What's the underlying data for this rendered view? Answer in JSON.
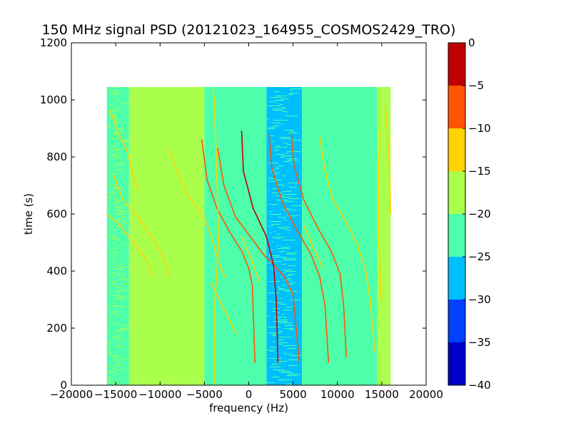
{
  "chart_data": {
    "type": "heatmap",
    "title": "150 MHz signal PSD (20121023_164955_COSMOS2429_TRO)",
    "xlabel": "frequency (Hz)",
    "ylabel": "time (s)",
    "xlim": [
      -20000,
      20000
    ],
    "ylim": [
      0,
      1200
    ],
    "xticks": [
      -20000,
      -15000,
      -10000,
      -5000,
      0,
      5000,
      10000,
      15000,
      20000
    ],
    "xtick_labels": [
      "−20000",
      "−15000",
      "−10000",
      "−5000",
      "0",
      "5000",
      "10000",
      "15000",
      "20000"
    ],
    "yticks": [
      0,
      200,
      400,
      600,
      800,
      1000,
      1200
    ],
    "ytick_labels": [
      "0",
      "200",
      "400",
      "600",
      "800",
      "1000",
      "1200"
    ],
    "data_extent": {
      "x": [
        -16000,
        16000
      ],
      "y": [
        0,
        1045
      ]
    },
    "colorbar": {
      "min": -40,
      "max": 0,
      "ticks": [
        0,
        -5,
        -10,
        -15,
        -20,
        -25,
        -30,
        -35,
        -40
      ],
      "tick_labels": [
        "0",
        "−5",
        "−10",
        "−15",
        "−20",
        "−25",
        "−30",
        "−35",
        "−40"
      ],
      "levels": [
        {
          "range": [
            -5,
            0
          ],
          "color": "#c00000"
        },
        {
          "range": [
            -10,
            -5
          ],
          "color": "#ff5500"
        },
        {
          "range": [
            -15,
            -10
          ],
          "color": "#ffd200"
        },
        {
          "range": [
            -20,
            -15
          ],
          "color": "#aaff4d"
        },
        {
          "range": [
            -25,
            -20
          ],
          "color": "#4dffaa"
        },
        {
          "range": [
            -30,
            -25
          ],
          "color": "#00bfff"
        },
        {
          "range": [
            -35,
            -30
          ],
          "color": "#0040ff"
        },
        {
          "range": [
            -40,
            -35
          ],
          "color": "#0000c8"
        }
      ]
    },
    "bands": [
      {
        "x": [
          -16000,
          -13500
        ],
        "level": -20,
        "color": "#4dffaa",
        "note": "mixed"
      },
      {
        "x": [
          -13500,
          -5000
        ],
        "level": -17,
        "color": "#aaff4d"
      },
      {
        "x": [
          -5000,
          2000
        ],
        "level": -22,
        "color": "#4dffaa"
      },
      {
        "x": [
          2000,
          6000
        ],
        "level": -26,
        "color": "#00bfff",
        "note": "mixed"
      },
      {
        "x": [
          6000,
          14500
        ],
        "level": -22,
        "color": "#4dffaa"
      },
      {
        "x": [
          14500,
          16000
        ],
        "level": -19,
        "color": "#aaff4d"
      }
    ],
    "traces": [
      {
        "color": "#ff5500",
        "points": [
          [
            -5300,
            860
          ],
          [
            -4700,
            720
          ],
          [
            -3600,
            620
          ],
          [
            -2200,
            540
          ],
          [
            -800,
            470
          ],
          [
            0,
            410
          ],
          [
            400,
            350
          ],
          [
            700,
            80
          ]
        ]
      },
      {
        "color": "#ff5500",
        "points": [
          [
            -3500,
            830
          ],
          [
            -2800,
            700
          ],
          [
            -1500,
            590
          ],
          [
            200,
            520
          ],
          [
            1600,
            460
          ],
          [
            2900,
            420
          ],
          [
            4000,
            380
          ],
          [
            5000,
            320
          ],
          [
            5700,
            80
          ]
        ]
      },
      {
        "color": "#c00000",
        "points": [
          [
            -800,
            890
          ],
          [
            -600,
            750
          ],
          [
            500,
            620
          ],
          [
            2000,
            520
          ],
          [
            2800,
            420
          ],
          [
            3100,
            300
          ],
          [
            3300,
            80
          ]
        ]
      },
      {
        "color": "#ff5500",
        "points": [
          [
            2300,
            880
          ],
          [
            2600,
            760
          ],
          [
            3800,
            640
          ],
          [
            5500,
            540
          ],
          [
            7000,
            460
          ],
          [
            8000,
            380
          ],
          [
            8600,
            280
          ],
          [
            9000,
            80
          ]
        ]
      },
      {
        "color": "#ff5500",
        "points": [
          [
            4800,
            880
          ],
          [
            5100,
            770
          ],
          [
            6200,
            650
          ],
          [
            7800,
            550
          ],
          [
            9300,
            470
          ],
          [
            10300,
            390
          ],
          [
            10700,
            280
          ],
          [
            11000,
            100
          ]
        ]
      },
      {
        "color": "#ffd200",
        "points": [
          [
            -15600,
            960
          ],
          [
            -14800,
            890
          ],
          [
            -13800,
            830
          ],
          [
            -12900,
            720
          ],
          [
            -12400,
            690
          ]
        ]
      },
      {
        "color": "#ffd200",
        "points": [
          [
            -16000,
            600
          ],
          [
            -14500,
            560
          ],
          [
            -13000,
            500
          ],
          [
            -11500,
            440
          ],
          [
            -10800,
            380
          ]
        ]
      },
      {
        "color": "#ffd200",
        "points": [
          [
            -15300,
            740
          ],
          [
            -14200,
            650
          ],
          [
            -12500,
            590
          ],
          [
            -11000,
            520
          ],
          [
            -9800,
            460
          ],
          [
            -8900,
            380
          ]
        ]
      },
      {
        "color": "#ffd200",
        "points": [
          [
            -9000,
            830
          ],
          [
            -8200,
            760
          ],
          [
            -6800,
            660
          ],
          [
            -5200,
            600
          ],
          [
            -4200,
            520
          ],
          [
            -3500,
            440
          ],
          [
            -2700,
            380
          ]
        ]
      },
      {
        "color": "#ffd200",
        "points": [
          [
            -4000,
            1040
          ],
          [
            -3900,
            1000
          ],
          [
            -3700,
            850
          ],
          [
            -3400,
            500
          ],
          [
            -3800,
            300
          ],
          [
            -3900,
            0
          ]
        ]
      },
      {
        "color": "#ffd200",
        "points": [
          [
            8000,
            870
          ],
          [
            8600,
            750
          ],
          [
            9500,
            650
          ],
          [
            11000,
            570
          ],
          [
            12300,
            490
          ],
          [
            13200,
            400
          ],
          [
            13700,
            300
          ],
          [
            14200,
            120
          ]
        ]
      },
      {
        "color": "#ffd200",
        "points": [
          [
            14800,
            890
          ],
          [
            14600,
            700
          ],
          [
            14700,
            500
          ],
          [
            14900,
            300
          ]
        ]
      },
      {
        "color": "#ffd200",
        "points": [
          [
            15400,
            980
          ],
          [
            15600,
            900
          ],
          [
            15900,
            740
          ],
          [
            16000,
            600
          ]
        ]
      },
      {
        "color": "#ffd200",
        "points": [
          [
            6200,
            560
          ],
          [
            7300,
            480
          ],
          [
            8400,
            410
          ]
        ]
      },
      {
        "color": "#ffd200",
        "points": [
          [
            -800,
            520
          ],
          [
            300,
            440
          ],
          [
            1200,
            360
          ]
        ]
      },
      {
        "color": "#ffd200",
        "points": [
          [
            -4200,
            360
          ],
          [
            -3200,
            290
          ],
          [
            -2200,
            230
          ],
          [
            -1400,
            180
          ]
        ]
      }
    ]
  }
}
